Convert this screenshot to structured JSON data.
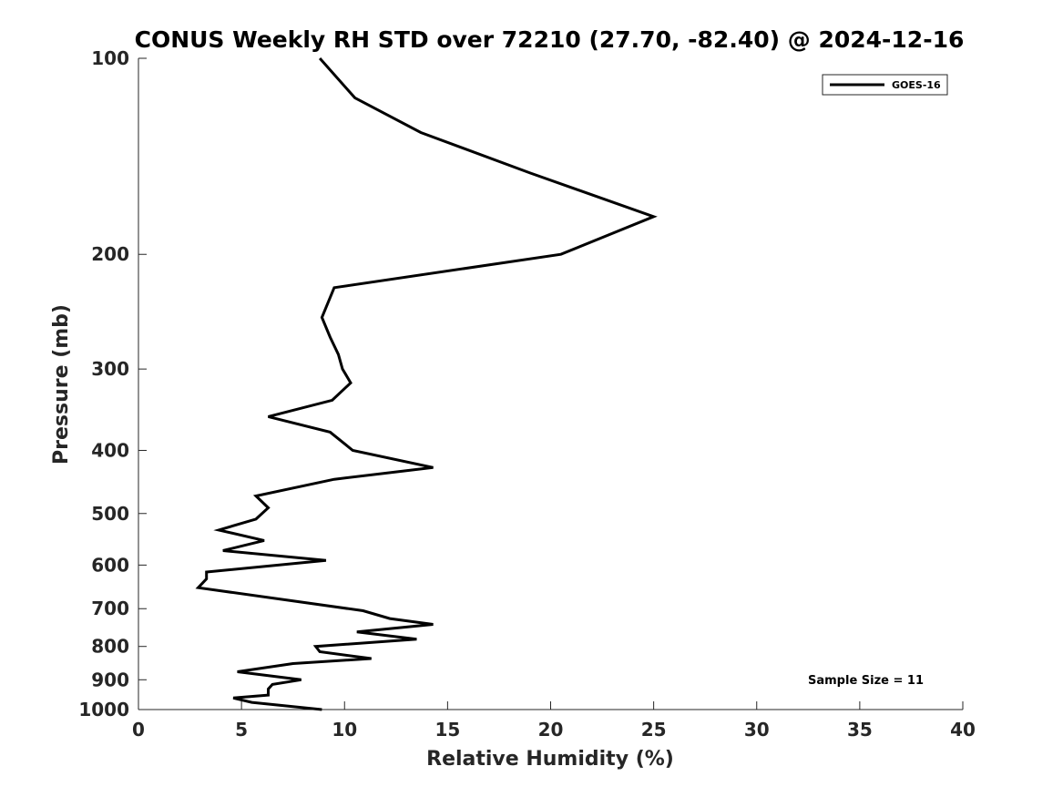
{
  "chart_data": {
    "type": "line",
    "title": "CONUS Weekly RH STD over 72210 (27.70, -82.40) @ 2024-12-16",
    "xlabel": "Relative Humidity (%)",
    "ylabel": "Pressure (mb)",
    "xlim": [
      0,
      40
    ],
    "ylim": [
      100,
      1000
    ],
    "y_scale": "log",
    "y_reversed": true,
    "x_ticks": [
      0,
      5,
      10,
      15,
      20,
      25,
      30,
      35,
      40
    ],
    "x_tick_labels": [
      "0",
      "5",
      "10",
      "15",
      "20",
      "25",
      "30",
      "35",
      "40"
    ],
    "y_ticks": [
      100,
      200,
      300,
      400,
      500,
      600,
      700,
      800,
      900,
      1000
    ],
    "y_tick_labels": [
      "100",
      "200",
      "300",
      "400",
      "500",
      "600",
      "700",
      "800",
      "900",
      "1000"
    ],
    "grid": false,
    "legend_position": "top-right",
    "series": [
      {
        "name": "GOES-16",
        "color": "#000000",
        "x": [
          8.8,
          10.5,
          13.7,
          19.0,
          25.0,
          20.5,
          9.5,
          8.9,
          9.3,
          9.7,
          9.9,
          10.3,
          9.4,
          6.3,
          9.3,
          10.4,
          14.3,
          9.5,
          5.7,
          6.3,
          5.7,
          3.9,
          6.1,
          4.1,
          9.1,
          3.3,
          3.3,
          2.9,
          10.9,
          12.2,
          14.3,
          10.6,
          13.5,
          8.6,
          8.8,
          11.3,
          7.5,
          4.8,
          7.9,
          6.5,
          6.3,
          6.3,
          4.6,
          5.5,
          8.9
        ],
        "y": [
          100,
          115,
          130,
          150,
          175,
          200,
          225,
          250,
          268,
          285,
          300,
          315,
          335,
          355,
          375,
          400,
          425,
          443,
          470,
          490,
          510,
          530,
          550,
          570,
          590,
          615,
          630,
          650,
          705,
          725,
          740,
          760,
          780,
          800,
          815,
          835,
          850,
          875,
          900,
          915,
          930,
          950,
          960,
          975,
          1000
        ]
      }
    ],
    "annotation": "Sample Size = 11"
  }
}
